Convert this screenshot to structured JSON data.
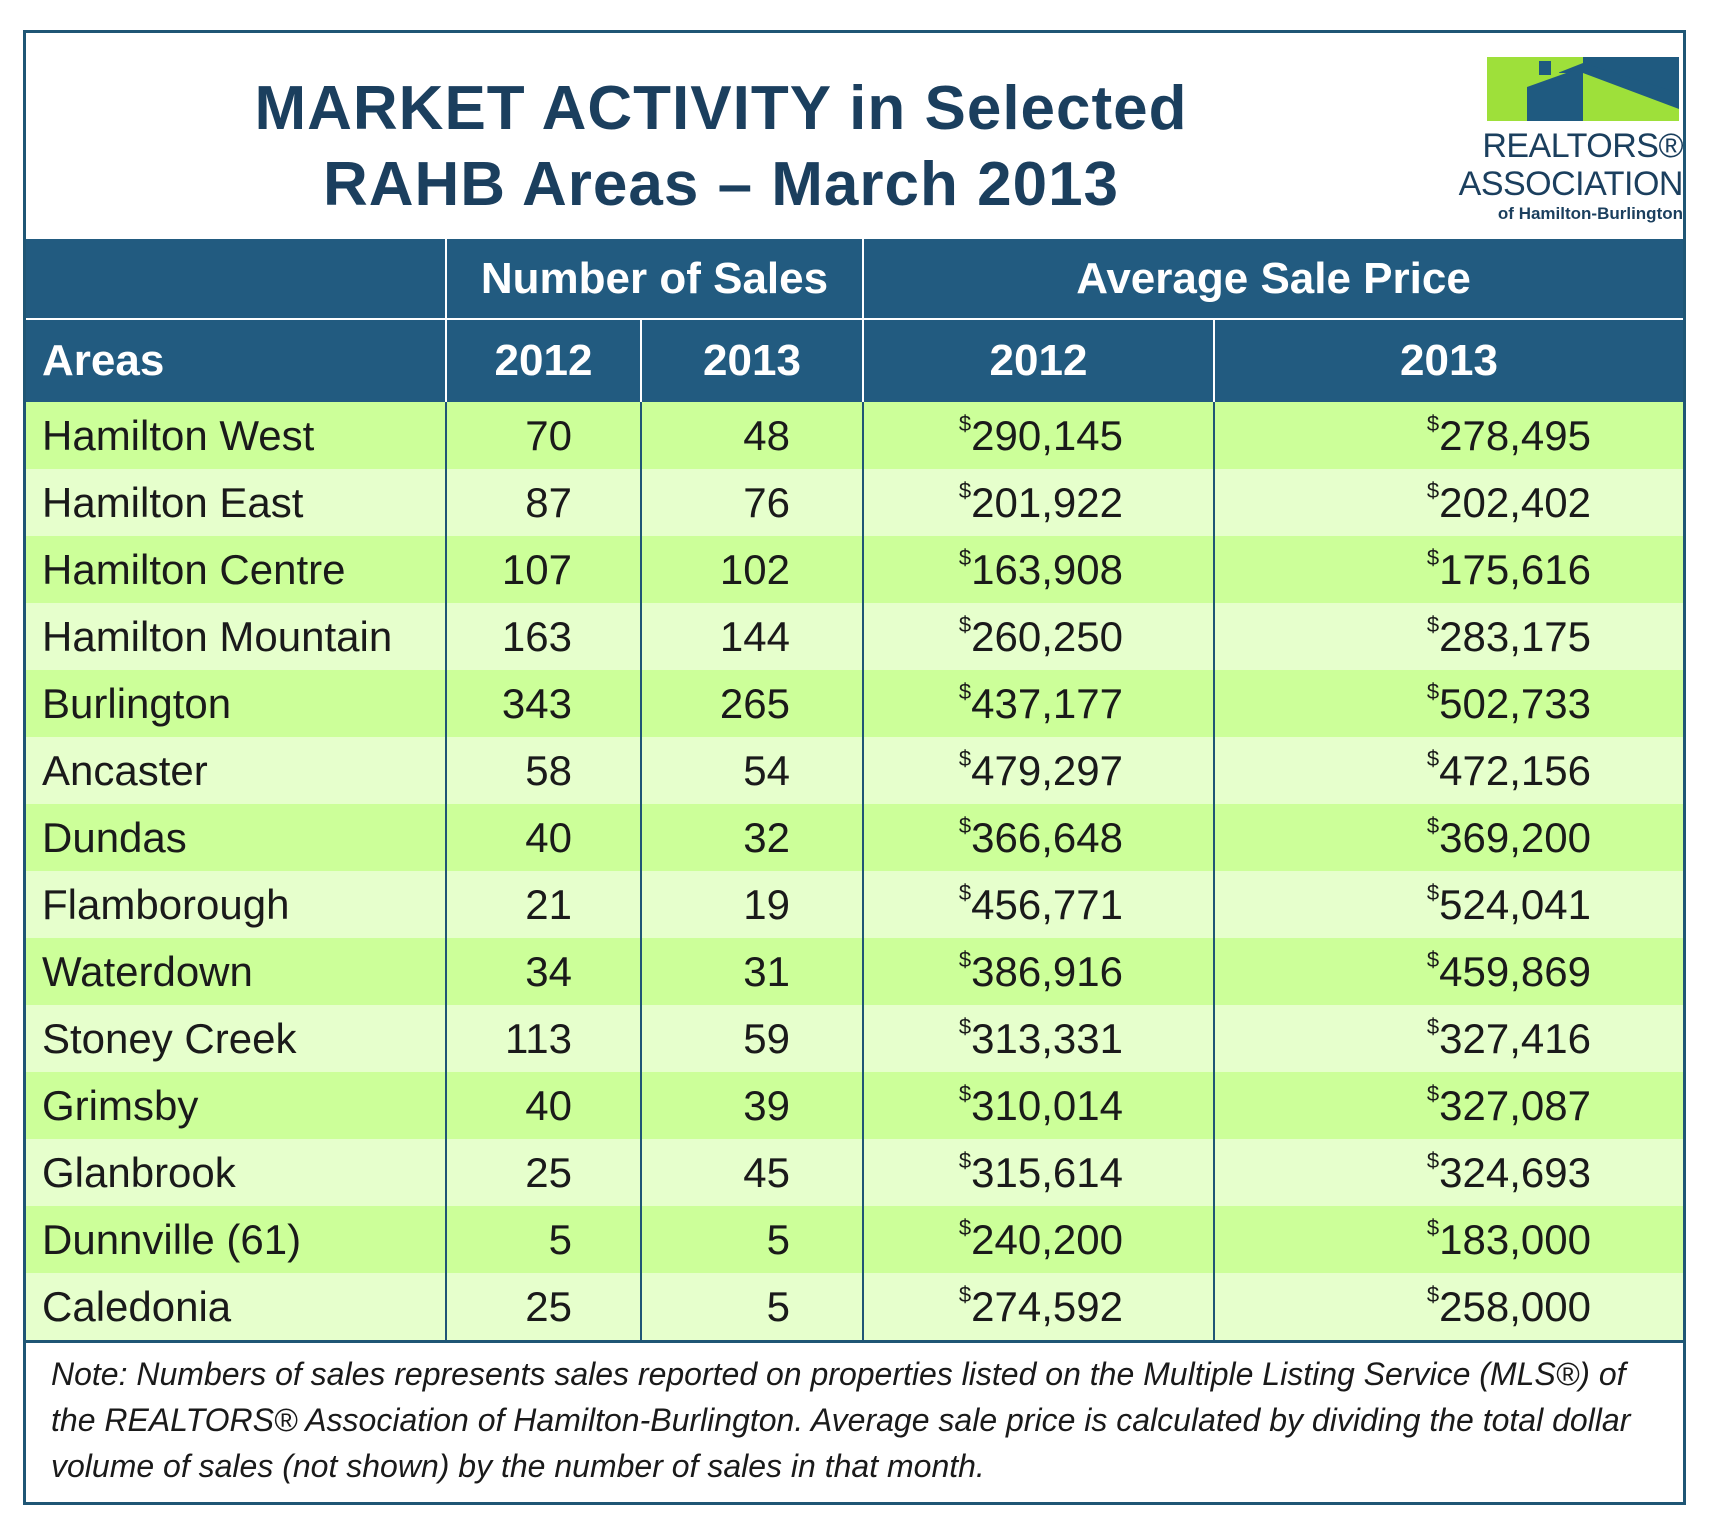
{
  "title": {
    "line1": "MARKET ACTIVITY in Selected",
    "line2": "RAHB Areas – March 2013"
  },
  "logo": {
    "line1": "REALTORS®",
    "line2": "ASSOCIATION",
    "line3": "of Hamilton-Burlington",
    "colors": {
      "blue": "#1f5a80",
      "green": "#9ee03a"
    }
  },
  "chart_data": {
    "type": "table",
    "group_headers": [
      "Number of Sales",
      "Average Sale Price"
    ],
    "columns": [
      "Areas",
      "2012",
      "2013",
      "2012",
      "2013"
    ],
    "rows": [
      {
        "area": "Hamilton West",
        "sales_2012": "70",
        "sales_2013": "48",
        "price_2012": "290,145",
        "price_2013": "278,495"
      },
      {
        "area": "Hamilton East",
        "sales_2012": "87",
        "sales_2013": "76",
        "price_2012": "201,922",
        "price_2013": "202,402"
      },
      {
        "area": "Hamilton Centre",
        "sales_2012": "107",
        "sales_2013": "102",
        "price_2012": "163,908",
        "price_2013": "175,616"
      },
      {
        "area": "Hamilton Mountain",
        "sales_2012": "163",
        "sales_2013": "144",
        "price_2012": "260,250",
        "price_2013": "283,175"
      },
      {
        "area": "Burlington",
        "sales_2012": "343",
        "sales_2013": "265",
        "price_2012": "437,177",
        "price_2013": "502,733"
      },
      {
        "area": "Ancaster",
        "sales_2012": "58",
        "sales_2013": "54",
        "price_2012": "479,297",
        "price_2013": "472,156"
      },
      {
        "area": "Dundas",
        "sales_2012": "40",
        "sales_2013": "32",
        "price_2012": "366,648",
        "price_2013": "369,200"
      },
      {
        "area": "Flamborough",
        "sales_2012": "21",
        "sales_2013": "19",
        "price_2012": "456,771",
        "price_2013": "524,041"
      },
      {
        "area": "Waterdown",
        "sales_2012": "34",
        "sales_2013": "31",
        "price_2012": "386,916",
        "price_2013": "459,869"
      },
      {
        "area": "Stoney Creek",
        "sales_2012": "113",
        "sales_2013": "59",
        "price_2012": "313,331",
        "price_2013": "327,416"
      },
      {
        "area": "Grimsby",
        "sales_2012": "40",
        "sales_2013": "39",
        "price_2012": "310,014",
        "price_2013": "327,087"
      },
      {
        "area": "Glanbrook",
        "sales_2012": "25",
        "sales_2013": "45",
        "price_2012": "315,614",
        "price_2013": "324,693"
      },
      {
        "area": "Dunnville (61)",
        "sales_2012": "5",
        "sales_2013": "5",
        "price_2012": "240,200",
        "price_2013": "183,000"
      },
      {
        "area": "Caledonia",
        "sales_2012": "25",
        "sales_2013": "5",
        "price_2012": "274,592",
        "price_2013": "258,000"
      }
    ],
    "currency_symbol": "$"
  },
  "note": "Note:  Numbers of sales represents sales reported on properties listed on the Multiple Listing Service (MLS®) of the REALTORS® Association of Hamilton-Burlington.  Average sale price is calculated by dividing the total dollar volume of sales (not shown) by the number of sales in that month.",
  "colors": {
    "header_bg": "#225b80",
    "title_text": "#1b3f5e",
    "row_dark": "#ccff99",
    "row_light": "#e6ffcc"
  }
}
